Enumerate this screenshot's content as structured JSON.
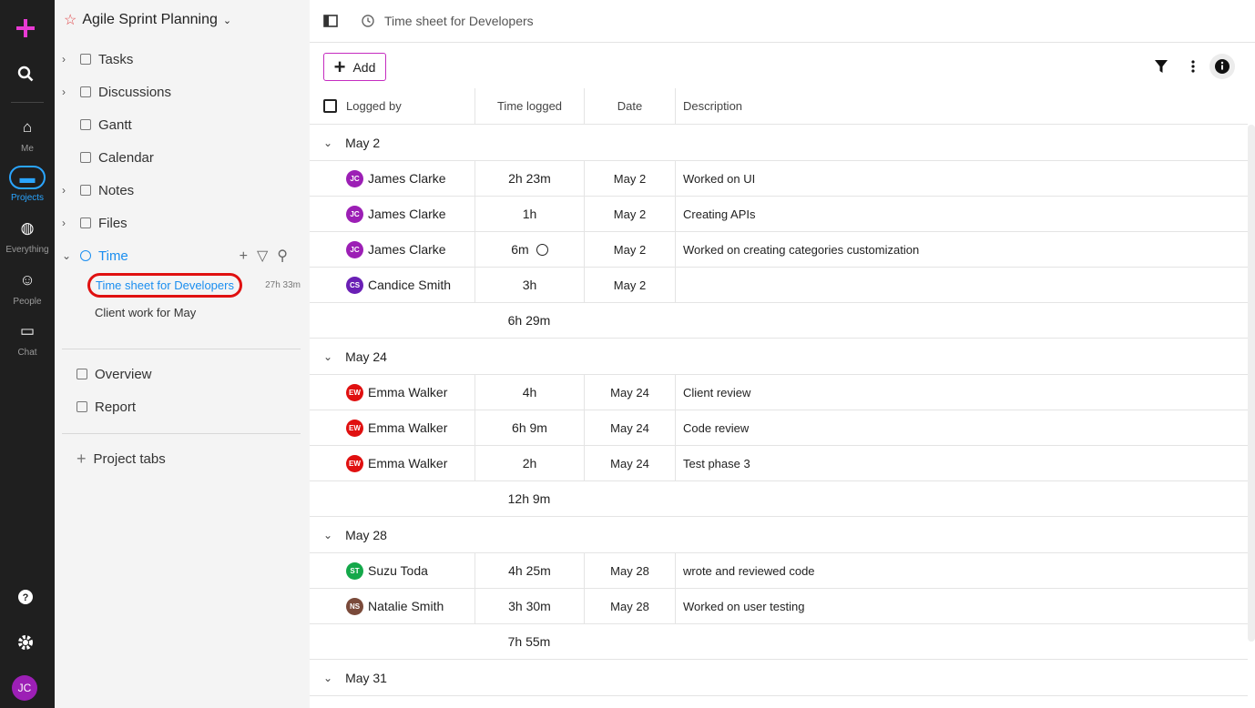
{
  "rail": {
    "items": [
      {
        "label": "Me"
      },
      {
        "label": "Projects",
        "active": true
      },
      {
        "label": "Everything"
      },
      {
        "label": "People"
      },
      {
        "label": "Chat"
      }
    ],
    "avatar": "JC"
  },
  "sidebar": {
    "project": "Agile Sprint Planning",
    "nav": [
      {
        "label": "Tasks",
        "expandable": true
      },
      {
        "label": "Discussions",
        "expandable": true
      },
      {
        "label": "Gantt"
      },
      {
        "label": "Calendar"
      },
      {
        "label": "Notes",
        "expandable": true
      },
      {
        "label": "Files",
        "expandable": true
      },
      {
        "label": "Time",
        "expandable": true,
        "active": true
      }
    ],
    "time_sheets": [
      {
        "name": "Time sheet for Developers",
        "total": "27h 33m",
        "active": true
      },
      {
        "name": "Client work for May"
      }
    ],
    "nav2": [
      "Overview",
      "Report"
    ],
    "project_tabs": "Project tabs"
  },
  "header": {
    "breadcrumb": "Time sheet for Developers"
  },
  "toolbar": {
    "add": "Add"
  },
  "table": {
    "columns": [
      "Logged by",
      "Time logged",
      "Date",
      "Description"
    ],
    "groups": [
      {
        "title": "May 2",
        "total": "6h 29m",
        "rows": [
          {
            "initials": "JC",
            "color": "#9c1fb5",
            "name": "James Clarke",
            "time": "2h 23m",
            "date": "May 2",
            "description": "Worked on UI"
          },
          {
            "initials": "JC",
            "color": "#9c1fb5",
            "name": "James Clarke",
            "time": "1h",
            "date": "May 2",
            "description": "Creating APIs"
          },
          {
            "initials": "JC",
            "color": "#9c1fb5",
            "name": "James Clarke",
            "time": "6m",
            "timer_running": true,
            "date": "May 2",
            "description": "Worked on creating categories customization"
          },
          {
            "initials": "CS",
            "color": "#6a1fb5",
            "name": "Candice Smith",
            "time": "3h",
            "date": "May 2"
          }
        ]
      },
      {
        "title": "May 24",
        "total": "12h 9m",
        "rows": [
          {
            "initials": "EW",
            "color": "#e01010",
            "name": "Emma Walker",
            "time": "4h",
            "date": "May 24",
            "description": "Client review"
          },
          {
            "initials": "EW",
            "color": "#e01010",
            "name": "Emma Walker",
            "time": "6h 9m",
            "date": "May 24",
            "description": "Code review"
          },
          {
            "initials": "EW",
            "color": "#e01010",
            "name": "Emma Walker",
            "time": "2h",
            "date": "May 24",
            "description": "Test phase 3"
          }
        ]
      },
      {
        "title": "May 28",
        "total": "7h 55m",
        "rows": [
          {
            "initials": "ST",
            "color": "#14a84a",
            "name": "Suzu Toda",
            "time": "4h 25m",
            "date": "May 28",
            "description": "wrote and reviewed code"
          },
          {
            "initials": "NS",
            "color": "#7a4a3a",
            "name": "Natalie Smith",
            "time": "3h 30m",
            "date": "May 28",
            "description": "Worked on user testing"
          }
        ]
      },
      {
        "title": "May 31"
      }
    ]
  }
}
